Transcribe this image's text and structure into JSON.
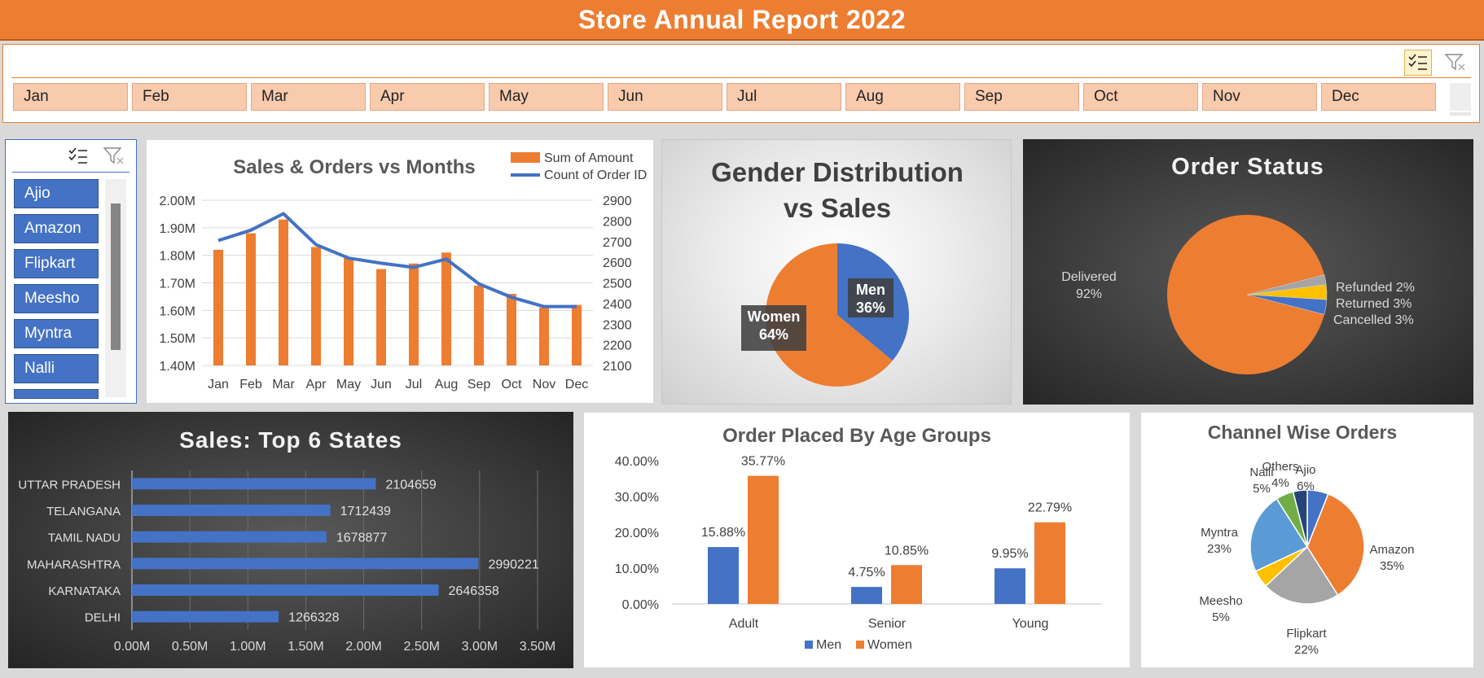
{
  "header": {
    "title": "Store Annual Report 2022"
  },
  "month_slicer": {
    "months": [
      "Jan",
      "Feb",
      "Mar",
      "Apr",
      "May",
      "Jun",
      "Jul",
      "Aug",
      "Sep",
      "Oct",
      "Nov",
      "Dec"
    ]
  },
  "channel_slicer": {
    "items": [
      "Ajio",
      "Amazon",
      "Flipkart",
      "Meesho",
      "Myntra",
      "Nalli"
    ]
  },
  "colors": {
    "accent": "#ed7d31",
    "blue": "#4472c4",
    "gray": "#a5a5a5",
    "yellow": "#ffc000",
    "green": "#70ad47",
    "navy": "#264478",
    "light_blue": "#5b9bd5"
  },
  "chart_data": [
    {
      "id": "sales_orders",
      "type": "bar",
      "title": "Sales & Orders vs Months",
      "categories": [
        "Jan",
        "Feb",
        "Mar",
        "Apr",
        "May",
        "Jun",
        "Jul",
        "Aug",
        "Sep",
        "Oct",
        "Nov",
        "Dec"
      ],
      "series": [
        {
          "name": "Sum of Amount",
          "kind": "bar",
          "axis": "left",
          "values": [
            1.82,
            1.88,
            1.93,
            1.83,
            1.79,
            1.75,
            1.77,
            1.81,
            1.69,
            1.66,
            1.61,
            1.62
          ]
        },
        {
          "name": "Count of Order ID",
          "kind": "line",
          "axis": "right",
          "values": [
            2705,
            2755,
            2835,
            2685,
            2620,
            2595,
            2575,
            2615,
            2495,
            2430,
            2385,
            2385
          ]
        }
      ],
      "y_left": {
        "min": 1.4,
        "max": 2.0,
        "step": 0.1,
        "ticks": [
          "1.40M",
          "1.50M",
          "1.60M",
          "1.70M",
          "1.80M",
          "1.90M",
          "2.00M"
        ]
      },
      "y_right": {
        "min": 2100,
        "max": 2900,
        "step": 100,
        "ticks": [
          "2100",
          "2200",
          "2300",
          "2400",
          "2500",
          "2600",
          "2700",
          "2800",
          "2900"
        ]
      },
      "grid": true,
      "legend": "top-right"
    },
    {
      "id": "gender",
      "type": "pie",
      "title_lines": [
        "Gender Distribution",
        "vs Sales"
      ],
      "slices": [
        {
          "label": "Men",
          "value": 36,
          "pct": "36%"
        },
        {
          "label": "Women",
          "value": 64,
          "pct": "64%"
        }
      ]
    },
    {
      "id": "order_status",
      "type": "pie",
      "title": "Order Status",
      "slices": [
        {
          "label": "Delivered",
          "value": 92,
          "pct": "92%"
        },
        {
          "label": "Refunded",
          "value": 2,
          "pct": "2%"
        },
        {
          "label": "Returned",
          "value": 3,
          "pct": "3%"
        },
        {
          "label": "Cancelled",
          "value": 3,
          "pct": "3%"
        }
      ]
    },
    {
      "id": "top_states",
      "type": "bar",
      "orientation": "horizontal",
      "title": "Sales: Top 6 States",
      "categories": [
        "UTTAR PRADESH",
        "TELANGANA",
        "TAMIL NADU",
        "MAHARASHTRA",
        "KARNATAKA",
        "DELHI"
      ],
      "values": [
        2104659,
        1712439,
        1678877,
        2990221,
        2646358,
        1266328
      ],
      "x_ticks": [
        "0.00M",
        "0.50M",
        "1.00M",
        "1.50M",
        "2.00M",
        "2.50M",
        "3.00M",
        "3.50M"
      ],
      "xlim": [
        0,
        3500000
      ],
      "grid": true
    },
    {
      "id": "age_groups",
      "type": "bar",
      "title": "Order Placed By Age Groups",
      "categories": [
        "Adult",
        "Senior",
        "Young"
      ],
      "series": [
        {
          "name": "Men",
          "values": [
            15.88,
            4.75,
            9.95
          ],
          "labels": [
            "15.88%",
            "4.75%",
            "9.95%"
          ]
        },
        {
          "name": "Women",
          "values": [
            35.77,
            10.85,
            22.79
          ],
          "labels": [
            "35.77%",
            "10.85%",
            "22.79%"
          ]
        }
      ],
      "ylim": [
        0,
        40
      ],
      "y_ticks": [
        "0.00%",
        "10.00%",
        "20.00%",
        "30.00%",
        "40.00%"
      ],
      "legend": "bottom"
    },
    {
      "id": "channel",
      "type": "pie",
      "title": "Channel Wise Orders",
      "slices": [
        {
          "label": "Ajio",
          "value": 6,
          "pct": "6%"
        },
        {
          "label": "Amazon",
          "value": 35,
          "pct": "35%"
        },
        {
          "label": "Flipkart",
          "value": 22,
          "pct": "22%"
        },
        {
          "label": "Meesho",
          "value": 5,
          "pct": "5%"
        },
        {
          "label": "Myntra",
          "value": 23,
          "pct": "23%"
        },
        {
          "label": "Nalli",
          "value": 5,
          "pct": "5%"
        },
        {
          "label": "Others",
          "value": 4,
          "pct": "4%"
        }
      ]
    }
  ]
}
